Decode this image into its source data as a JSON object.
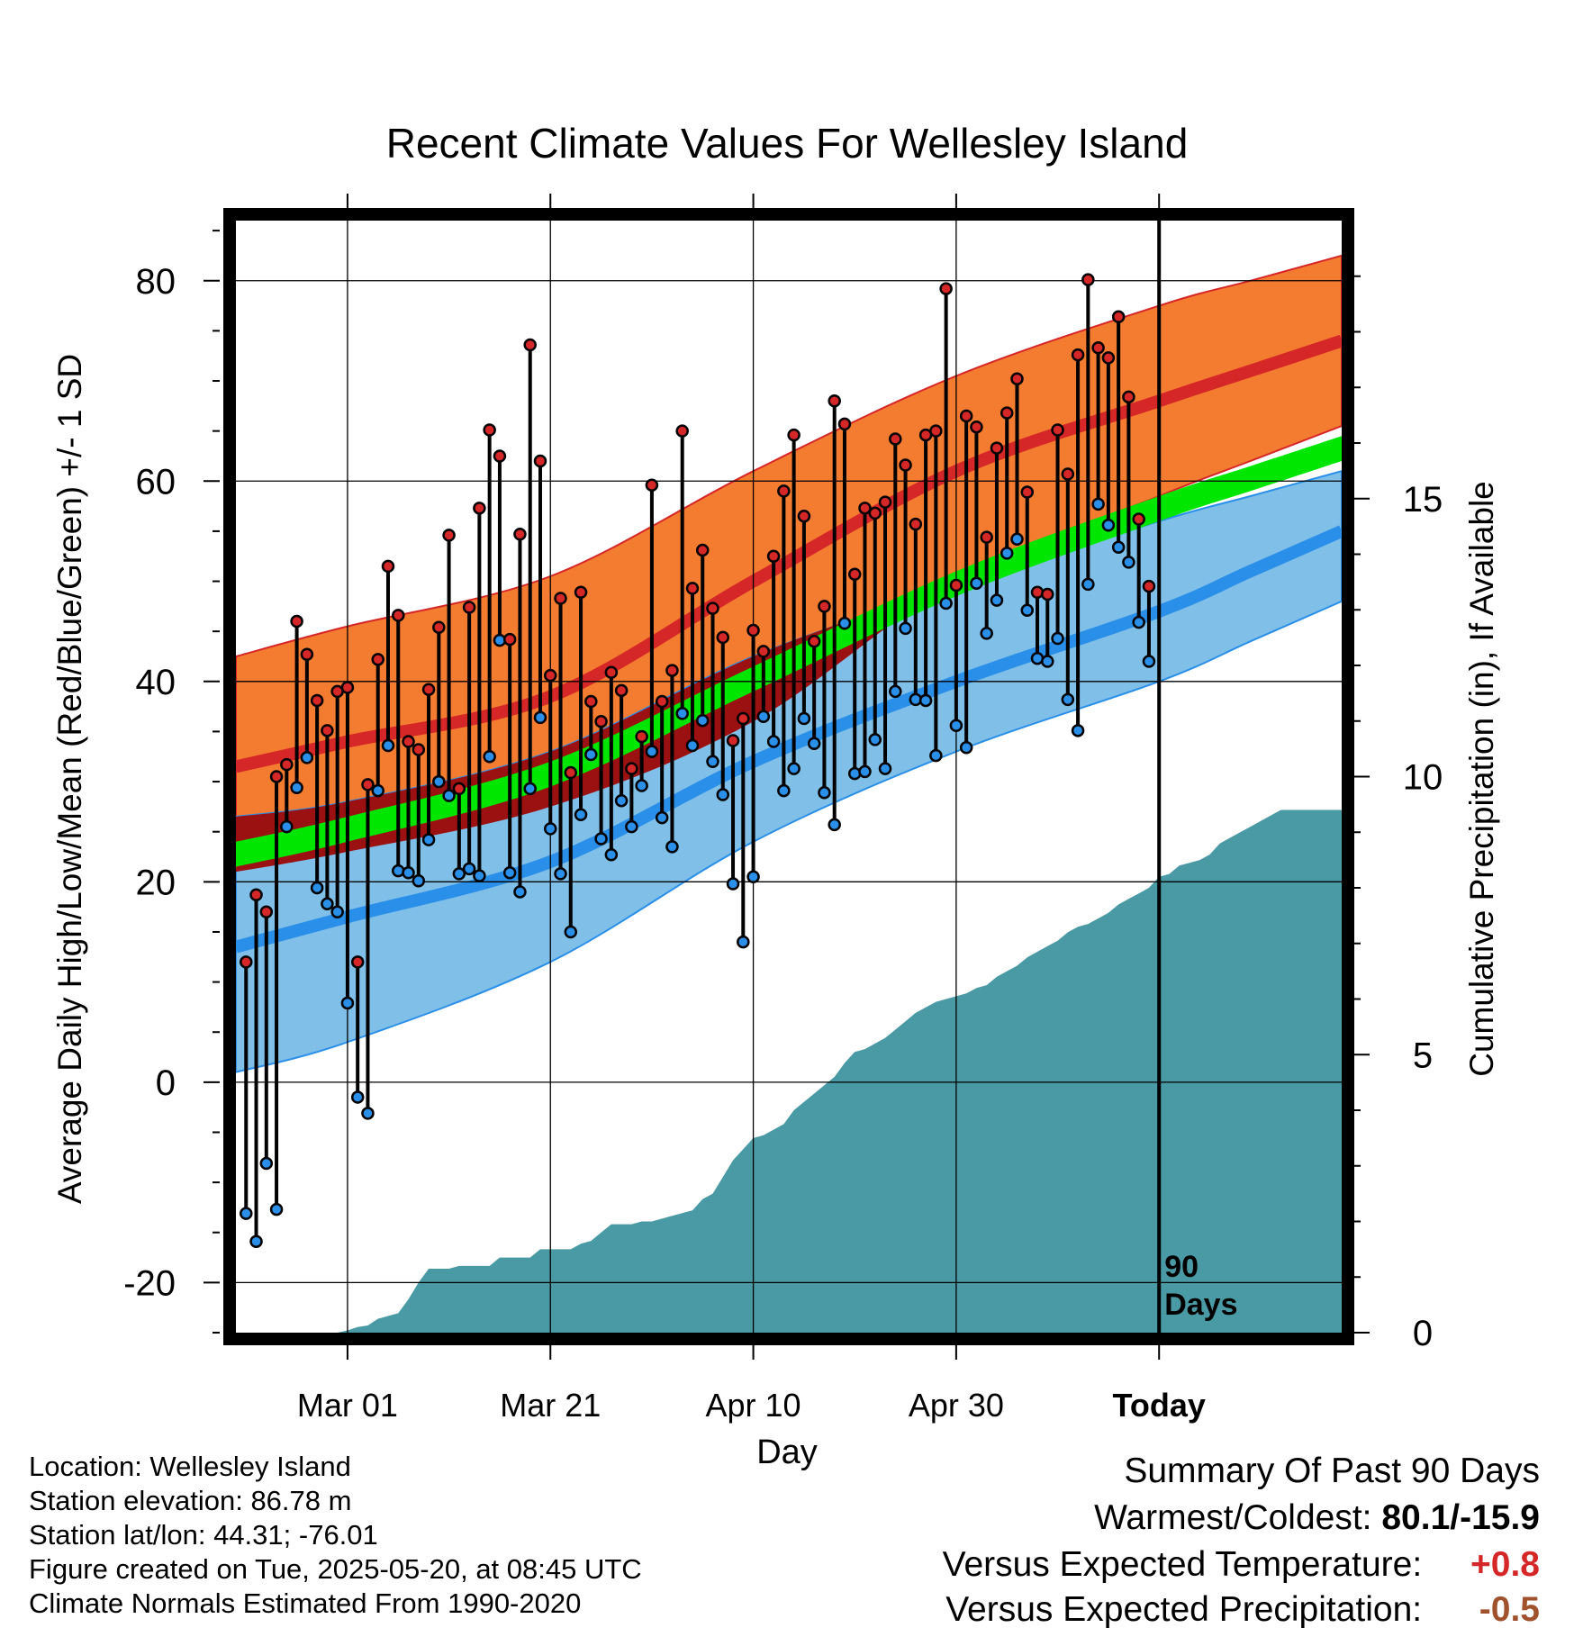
{
  "chart_data": {
    "type": "line",
    "title": "Recent Climate Values For Wellesley Island",
    "xlabel": "Day",
    "ylabel": "Average Daily High/Low/Mean (Red/Blue/Green) +/- 1 SD",
    "y2label": "Cumulative Precipitation (in), If Available",
    "x_start": "2025-02-19",
    "x_today": "2025-05-20",
    "xlim": [
      "2025-02-18",
      "2025-06-07"
    ],
    "ylim": [
      -25,
      86
    ],
    "y2lim": [
      0,
      20
    ],
    "x_ticks": [
      {
        "date": "2025-03-01",
        "label": "Mar 01"
      },
      {
        "date": "2025-03-21",
        "label": "Mar 21"
      },
      {
        "date": "2025-04-10",
        "label": "Apr 10"
      },
      {
        "date": "2025-04-30",
        "label": "Apr 30"
      },
      {
        "date": "2025-05-20",
        "label": "Today"
      }
    ],
    "y_ticks": [
      -20,
      0,
      20,
      40,
      60,
      80
    ],
    "y2_ticks": [
      0,
      5,
      10,
      15
    ],
    "grid": true,
    "colors": {
      "high_band": "#f47c30",
      "high_mean": "#d62728",
      "low_band": "#80c0e8",
      "low_mean": "#2a8fe8",
      "mean_band": "#00e600",
      "overlap": "#9b1111",
      "precip": "#4a9aa5",
      "high_dot": "#d62728",
      "low_dot": "#2a8fe8"
    },
    "normals": {
      "high": [
        {
          "date": "2025-02-18",
          "mean": 31.5,
          "upper": 42.5,
          "lower": 21.0
        },
        {
          "date": "2025-03-01",
          "mean": 34.0,
          "upper": 45.5,
          "lower": 23.0
        },
        {
          "date": "2025-03-21",
          "mean": 38.5,
          "upper": 50.5,
          "lower": 27.5
        },
        {
          "date": "2025-04-10",
          "mean": 50.0,
          "upper": 61.0,
          "lower": 36.0
        },
        {
          "date": "2025-04-30",
          "mean": 61.0,
          "upper": 70.5,
          "lower": 50.0
        },
        {
          "date": "2025-05-20",
          "mean": 68.0,
          "upper": 77.5,
          "lower": 58.5
        },
        {
          "date": "2025-05-29",
          "mean": 71.0,
          "upper": 80.0,
          "lower": 62.0
        }
      ],
      "low": [
        {
          "date": "2025-02-18",
          "mean": 13.5,
          "upper": 26.5,
          "lower": 1.0
        },
        {
          "date": "2025-03-01",
          "mean": 16.5,
          "upper": 28.0,
          "lower": 4.0
        },
        {
          "date": "2025-03-21",
          "mean": 22.0,
          "upper": 33.0,
          "lower": 12.0
        },
        {
          "date": "2025-04-10",
          "mean": 32.0,
          "upper": 42.5,
          "lower": 24.0
        },
        {
          "date": "2025-04-30",
          "mean": 40.0,
          "upper": 49.5,
          "lower": 33.0
        },
        {
          "date": "2025-05-20",
          "mean": 47.0,
          "upper": 56.0,
          "lower": 40.0
        },
        {
          "date": "2025-05-29",
          "mean": 51.0,
          "upper": 58.5,
          "lower": 44.0
        }
      ],
      "mean": [
        {
          "date": "2025-02-18",
          "upper": 24.0,
          "lower": 21.5
        },
        {
          "date": "2025-03-01",
          "upper": 26.5,
          "lower": 24.0
        },
        {
          "date": "2025-03-21",
          "upper": 32.0,
          "lower": 29.5
        },
        {
          "date": "2025-04-10",
          "upper": 41.5,
          "lower": 39.0
        },
        {
          "date": "2025-04-30",
          "upper": 51.0,
          "lower": 48.5
        },
        {
          "date": "2025-05-20",
          "upper": 58.5,
          "lower": 56.0
        },
        {
          "date": "2025-05-29",
          "upper": 61.5,
          "lower": 59.0
        }
      ]
    },
    "daily": {
      "high": [
        12.0,
        18.7,
        17.0,
        30.5,
        31.7,
        46.0,
        42.7,
        38.1,
        35.1,
        39.0,
        39.4,
        12.0,
        29.7,
        42.2,
        51.5,
        46.6,
        34.0,
        33.2,
        39.2,
        45.4,
        54.6,
        29.3,
        47.4,
        57.3,
        65.1,
        62.5,
        44.2,
        54.7,
        73.6,
        62.0,
        40.6,
        48.3,
        30.9,
        48.9,
        38.0,
        36.0,
        40.9,
        39.1,
        31.3,
        34.5,
        59.6,
        38.0,
        41.1,
        65.0,
        49.3,
        53.1,
        47.3,
        44.4,
        34.1,
        36.3,
        45.1,
        43.0,
        52.5,
        59.0,
        64.6,
        56.5,
        44.0,
        47.5,
        68.0,
        65.7,
        50.7,
        57.3,
        56.8,
        57.9,
        64.2,
        61.6,
        55.7,
        64.6,
        65.0,
        79.2,
        49.6,
        66.5,
        65.4,
        54.4,
        63.3,
        66.8,
        70.2,
        58.9,
        48.9,
        48.7,
        65.1,
        60.7,
        72.6,
        80.1,
        73.3,
        72.3,
        76.4,
        68.4,
        56.2,
        49.5
      ],
      "low": [
        -13.1,
        -15.9,
        -8.1,
        -12.7,
        25.5,
        29.4,
        32.4,
        19.4,
        17.8,
        17.0,
        7.9,
        -1.5,
        -3.1,
        29.1,
        33.6,
        21.1,
        20.9,
        20.1,
        24.2,
        30.0,
        28.6,
        20.8,
        21.3,
        20.6,
        32.5,
        44.1,
        20.9,
        19.0,
        29.3,
        36.4,
        25.3,
        20.8,
        15.0,
        26.7,
        32.7,
        24.3,
        22.7,
        28.1,
        25.5,
        29.6,
        33.0,
        26.4,
        23.5,
        36.8,
        33.6,
        36.1,
        32.0,
        28.7,
        19.8,
        14.0,
        20.5,
        36.5,
        34.0,
        29.1,
        31.3,
        36.3,
        33.8,
        28.9,
        25.7,
        45.8,
        30.8,
        31.0,
        34.2,
        31.3,
        39.0,
        45.3,
        38.2,
        38.1,
        32.6,
        47.8,
        35.6,
        33.4,
        49.8,
        44.8,
        48.1,
        52.8,
        54.2,
        47.1,
        42.3,
        42.0,
        44.3,
        38.2,
        35.1,
        49.7,
        57.7,
        55.6,
        53.4,
        51.9,
        45.9,
        42.0
      ]
    },
    "precip_cumulative": [
      0,
      0,
      0,
      0,
      0,
      0,
      0,
      0,
      0,
      0,
      0.04,
      0.1,
      0.13,
      0.25,
      0.3,
      0.35,
      0.6,
      0.9,
      1.15,
      1.15,
      1.15,
      1.2,
      1.2,
      1.2,
      1.2,
      1.35,
      1.35,
      1.35,
      1.35,
      1.5,
      1.5,
      1.5,
      1.5,
      1.6,
      1.65,
      1.8,
      1.95,
      1.95,
      1.95,
      2.0,
      2.0,
      2.05,
      2.1,
      2.15,
      2.2,
      2.4,
      2.5,
      2.8,
      3.1,
      3.3,
      3.5,
      3.55,
      3.65,
      3.75,
      4.0,
      4.15,
      4.3,
      4.45,
      4.6,
      4.85,
      5.05,
      5.1,
      5.2,
      5.3,
      5.45,
      5.6,
      5.75,
      5.85,
      5.95,
      6.0,
      6.05,
      6.1,
      6.2,
      6.25,
      6.4,
      6.5,
      6.6,
      6.75,
      6.85,
      6.95,
      7.05,
      7.2,
      7.3,
      7.35,
      7.45,
      7.55,
      7.7,
      7.8,
      7.9,
      8.0,
      8.2,
      8.25,
      8.4,
      8.45,
      8.5,
      8.6,
      8.8,
      8.9,
      9.0,
      9.1,
      9.2,
      9.3,
      9.4
    ],
    "today_label_line1": "90",
    "today_label_line2": "Days"
  },
  "info": {
    "location": "Location: Wellesley Island",
    "elevation": "Station elevation: 86.78 m",
    "latlon": "Station lat/lon: 44.31; -76.01",
    "created": "Figure created on Tue, 2025-05-20, at 08:45 UTC",
    "normals": "Climate Normals Estimated From 1990-2020"
  },
  "summary": {
    "title": "Summary Of Past 90 Days",
    "warm_cold_label": "Warmest/Coldest: ",
    "warm_cold_value": "80.1/-15.9",
    "temp_label": "Versus Expected Temperature:",
    "temp_value": "+0.8",
    "temp_color": "#d62728",
    "precip_label": "Versus Expected Precipitation:",
    "precip_value": "-0.5",
    "precip_color": "#a0522d"
  }
}
